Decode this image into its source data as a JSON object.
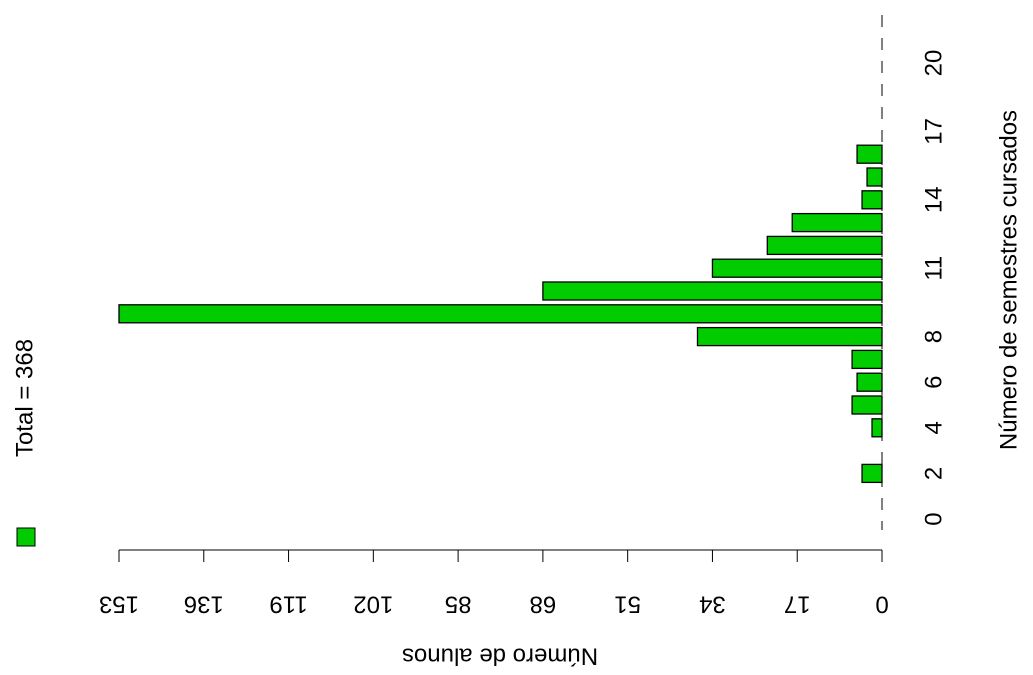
{
  "chart_data": {
    "type": "bar",
    "orientation": "horizontal",
    "x_label": "Número de alunos",
    "y_label": "Número de semestres cursados",
    "legend_text": "Total = 368",
    "categories": [
      "0",
      null,
      "2",
      null,
      "4",
      null,
      "6",
      null,
      "8",
      null,
      null,
      "11",
      null,
      null,
      "14",
      null,
      null,
      "17",
      null,
      null,
      "20"
    ],
    "values": [
      0,
      0,
      4,
      0,
      2,
      6,
      5,
      6,
      37,
      153,
      68,
      34,
      23,
      18,
      4,
      3,
      5,
      0,
      0,
      0,
      0
    ],
    "color": "#00cc00",
    "xlim": [
      0,
      153
    ],
    "xticks": [
      0,
      17,
      34,
      51,
      68,
      85,
      102,
      119,
      136,
      153
    ]
  }
}
